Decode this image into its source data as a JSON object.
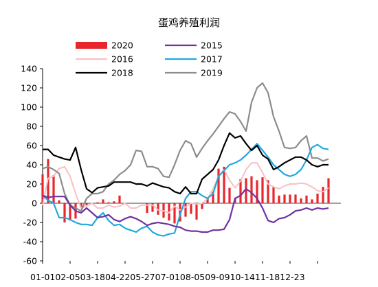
{
  "chart_data": {
    "type": "line",
    "title": "蛋鸡养殖利润",
    "xlabel": "",
    "ylabel": "",
    "ylim": [
      -60,
      140
    ],
    "yticks": [
      -60,
      -40,
      -20,
      0,
      20,
      40,
      60,
      80,
      100,
      120,
      140
    ],
    "x_labels_text": "01-0102-0503-1804-2205-2707-0108-0509-0910-1411-1812-23",
    "x_count": 53,
    "grid": false,
    "legend": "top",
    "series": [
      {
        "name": "2020",
        "type": "bar",
        "color": "#e8262b",
        "values": [
          30,
          46,
          29,
          3,
          -20,
          -18,
          -16,
          -5,
          -2,
          0,
          1,
          4,
          1,
          2,
          8,
          0,
          0,
          0,
          0,
          -10,
          -9,
          -12,
          -15,
          -18,
          -21,
          -19,
          -14,
          -11,
          -17,
          -6,
          5,
          12,
          36,
          38,
          16,
          5,
          25,
          26,
          28,
          24,
          27,
          24,
          17,
          8,
          9,
          9,
          9,
          5,
          8,
          4,
          10,
          17,
          26
        ]
      },
      {
        "name": "2015",
        "type": "line",
        "color": "#7030a0",
        "values": [
          8,
          6,
          7,
          7,
          7,
          -2,
          -8,
          -10,
          -5,
          -10,
          -15,
          -14,
          -12,
          -17,
          -19,
          -16,
          -14,
          -16,
          -19,
          -23,
          -21,
          -20,
          -21,
          -22,
          -24,
          -25,
          -28,
          -29,
          -29,
          -30,
          -30,
          -28,
          -28,
          -27,
          -17,
          5,
          8,
          15,
          11,
          5,
          -5,
          -18,
          -20,
          -16,
          -15,
          -12,
          -8,
          -7,
          -5,
          -7,
          -5,
          -6,
          -5
        ]
      },
      {
        "name": "2016",
        "type": "line",
        "color": "#f8c0c4",
        "values": [
          -2,
          26,
          28,
          36,
          38,
          28,
          10,
          -5,
          -3,
          0,
          -5,
          -5,
          -2,
          -4,
          -3,
          0,
          -5,
          -5,
          -2,
          -2,
          -2,
          -7,
          -8,
          -10,
          -3,
          -7,
          -4,
          0,
          -1,
          0,
          5,
          15,
          28,
          35,
          24,
          16,
          23,
          35,
          42,
          42,
          32,
          20,
          17,
          15,
          18,
          20,
          20,
          21,
          20,
          17,
          13,
          12,
          16
        ]
      },
      {
        "name": "2017",
        "type": "line",
        "color": "#1fa8e0",
        "values": [
          8,
          3,
          0,
          -15,
          -15,
          -17,
          -20,
          -22,
          -22,
          -23,
          -15,
          -10,
          -18,
          -23,
          -22,
          -26,
          -28,
          -30,
          -26,
          -24,
          -30,
          -33,
          -34,
          -32,
          -31,
          -12,
          5,
          12,
          12,
          8,
          5,
          10,
          28,
          34,
          40,
          42,
          45,
          50,
          56,
          62,
          55,
          48,
          40,
          35,
          30,
          28,
          30,
          35,
          45,
          58,
          61,
          57,
          56
        ]
      },
      {
        "name": "2018",
        "type": "line",
        "color": "#000000",
        "values": [
          56,
          56,
          50,
          48,
          46,
          45,
          58,
          35,
          15,
          11,
          16,
          17,
          18,
          22,
          22,
          22,
          22,
          20,
          20,
          18,
          21,
          19,
          17,
          16,
          12,
          10,
          17,
          10,
          10,
          25,
          30,
          35,
          45,
          60,
          73,
          68,
          70,
          62,
          55,
          60,
          50,
          46,
          35,
          38,
          42,
          45,
          48,
          48,
          45,
          40,
          38,
          40,
          40
        ]
      },
      {
        "name": "2019",
        "type": "line",
        "color": "#8c8c8c",
        "values": [
          36,
          38,
          35,
          31,
          10,
          -2,
          -5,
          -8,
          5,
          10,
          10,
          12,
          20,
          24,
          30,
          34,
          40,
          55,
          54,
          38,
          38,
          36,
          28,
          27,
          40,
          55,
          65,
          62,
          48,
          57,
          65,
          72,
          80,
          88,
          95,
          93,
          85,
          75,
          105,
          120,
          125,
          115,
          90,
          75,
          58,
          57,
          58,
          65,
          70,
          47,
          47,
          44,
          46
        ]
      }
    ]
  }
}
